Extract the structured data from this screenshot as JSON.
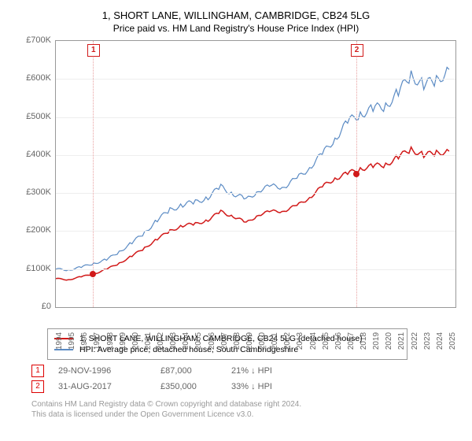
{
  "title": "1, SHORT LANE, WILLINGHAM, CAMBRIDGE, CB24 5LG",
  "subtitle": "Price paid vs. HM Land Registry's House Price Index (HPI)",
  "chart": {
    "type": "line",
    "xlim": [
      1994,
      2025.5
    ],
    "ylim": [
      0,
      700000
    ],
    "ytick_step": 100000,
    "ytick_prefix": "£",
    "ytick_suffix": "K",
    "xtick_step": 1,
    "background_color": "#ffffff",
    "grid_color": "#eeeeee",
    "border_color": "#999999",
    "axis_label_color": "#666666",
    "axis_fontsize": 11,
    "series": [
      {
        "name": "hpi",
        "label": "HPI: Average price, detached house, South Cambridgeshire",
        "color": "#5b8bc4",
        "stroke_width": 1.2,
        "data": [
          [
            1994,
            100000
          ],
          [
            1995,
            98000
          ],
          [
            1996,
            105000
          ],
          [
            1997,
            115000
          ],
          [
            1998,
            125000
          ],
          [
            1999,
            145000
          ],
          [
            2000,
            170000
          ],
          [
            2001,
            195000
          ],
          [
            2002,
            230000
          ],
          [
            2003,
            255000
          ],
          [
            2004,
            270000
          ],
          [
            2005,
            275000
          ],
          [
            2006,
            290000
          ],
          [
            2007,
            315000
          ],
          [
            2008,
            300000
          ],
          [
            2009,
            280000
          ],
          [
            2010,
            310000
          ],
          [
            2011,
            315000
          ],
          [
            2012,
            320000
          ],
          [
            2013,
            335000
          ],
          [
            2014,
            370000
          ],
          [
            2015,
            400000
          ],
          [
            2016,
            445000
          ],
          [
            2017,
            485000
          ],
          [
            2018,
            510000
          ],
          [
            2019,
            520000
          ],
          [
            2020,
            530000
          ],
          [
            2021,
            565000
          ],
          [
            2022,
            610000
          ],
          [
            2023,
            585000
          ],
          [
            2024,
            595000
          ],
          [
            2025,
            625000
          ]
        ]
      },
      {
        "name": "property",
        "label": "1, SHORT LANE, WILLINGHAM, CAMBRIDGE, CB24 5LG (detached house)",
        "color": "#d11919",
        "stroke_width": 1.5,
        "data": [
          [
            1994,
            75000
          ],
          [
            1995,
            72000
          ],
          [
            1996,
            80000
          ],
          [
            1997,
            87000
          ],
          [
            1998,
            100000
          ],
          [
            1999,
            115000
          ],
          [
            2000,
            135000
          ],
          [
            2001,
            155000
          ],
          [
            2002,
            180000
          ],
          [
            2003,
            200000
          ],
          [
            2004,
            215000
          ],
          [
            2005,
            218000
          ],
          [
            2006,
            230000
          ],
          [
            2007,
            250000
          ],
          [
            2008,
            240000
          ],
          [
            2009,
            220000
          ],
          [
            2010,
            245000
          ],
          [
            2011,
            250000
          ],
          [
            2012,
            255000
          ],
          [
            2013,
            265000
          ],
          [
            2014,
            290000
          ],
          [
            2015,
            315000
          ],
          [
            2016,
            340000
          ],
          [
            2017,
            350000
          ],
          [
            2018,
            365000
          ],
          [
            2019,
            370000
          ],
          [
            2020,
            375000
          ],
          [
            2021,
            395000
          ],
          [
            2022,
            415000
          ],
          [
            2023,
            400000
          ],
          [
            2024,
            405000
          ],
          [
            2025,
            410000
          ]
        ]
      }
    ],
    "markers": [
      {
        "id": 1,
        "x": 1996.9,
        "y": 87000,
        "line_color": "#e8a0a0",
        "badge_color": "#d11919",
        "date": "29-NOV-1996",
        "price": "£87,000",
        "delta": "21% ↓ HPI"
      },
      {
        "id": 2,
        "x": 2017.66,
        "y": 350000,
        "line_color": "#e8a0a0",
        "badge_color": "#d11919",
        "date": "31-AUG-2017",
        "price": "£350,000",
        "delta": "33% ↓ HPI"
      }
    ]
  },
  "legend": {
    "border_color": "#999999"
  },
  "footer": {
    "line1": "Contains HM Land Registry data © Crown copyright and database right 2024.",
    "line2": "This data is licensed under the Open Government Licence v3.0."
  }
}
